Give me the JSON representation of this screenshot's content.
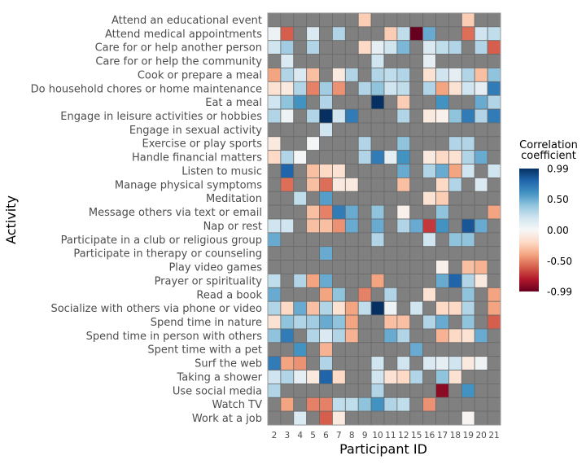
{
  "chart_data": {
    "type": "heatmap",
    "xlabel": "Participant ID",
    "ylabel": "Activity",
    "x_categories": [
      "2",
      "3",
      "4",
      "5",
      "6",
      "7",
      "8",
      "9",
      "10",
      "11",
      "12",
      "15",
      "16",
      "17",
      "18",
      "19",
      "20",
      "21"
    ],
    "y_categories": [
      "Attend an educational event",
      "Attend medical appointments",
      "Care for or help another person",
      "Care for or help the community",
      "Cook or prepare a meal",
      "Do household chores or home maintenance",
      "Eat a meal",
      "Engage in leisure activities or hobbies",
      "Engage in sexual activity",
      "Exercise or play sports",
      "Handle financial matters",
      "Listen to music",
      "Manage physical symptoms",
      "Meditation",
      "Message others via text or email",
      "Nap or rest",
      "Participate in a club or religious group",
      "Participate in therapy or counseling",
      "Play video games",
      "Prayer or spirituality",
      "Read a book",
      "Socialize with others via phone or video",
      "Spend time in nature",
      "Spend time in person with others",
      "Spent time with a pet",
      "Surf the web",
      "Taking a shower",
      "Use social media",
      "Watch TV",
      "Work at a job"
    ],
    "values": [
      [
        null,
        null,
        null,
        null,
        null,
        null,
        null,
        -0.25,
        null,
        null,
        null,
        null,
        null,
        null,
        null,
        -0.25,
        null,
        null
      ],
      [
        0.05,
        -0.6,
        null,
        0.15,
        null,
        0.3,
        null,
        null,
        null,
        -0.25,
        0.25,
        -0.99,
        0.5,
        null,
        null,
        -0.55,
        0.2,
        0.25
      ],
      [
        0.2,
        0.35,
        null,
        0.3,
        null,
        null,
        null,
        -0.2,
        0.1,
        0.2,
        0.45,
        null,
        0.15,
        0.25,
        0.3,
        null,
        0.3,
        -0.6
      ],
      [
        null,
        0.15,
        null,
        null,
        null,
        null,
        null,
        null,
        0.2,
        null,
        null,
        null,
        0.1,
        null,
        null,
        null,
        null,
        null
      ],
      [
        -0.4,
        0.3,
        0.15,
        -0.3,
        null,
        -0.1,
        0.3,
        null,
        0.3,
        0.25,
        0.3,
        null,
        -0.15,
        0.2,
        0.1,
        0.3,
        -0.3,
        0.4
      ],
      [
        -0.15,
        -0.1,
        0.3,
        -0.5,
        0.35,
        -0.45,
        null,
        0.3,
        0.4,
        0.2,
        0.25,
        null,
        0.3,
        -0.4,
        -0.15,
        0.2,
        0.1,
        0.7
      ],
      [
        0.2,
        0.4,
        0.6,
        null,
        0.3,
        null,
        null,
        null,
        0.99,
        null,
        -0.25,
        null,
        null,
        0.6,
        null,
        null,
        0.5,
        0.3
      ],
      [
        0.3,
        0.05,
        null,
        0.3,
        0.99,
        0.2,
        0.7,
        null,
        null,
        null,
        0.3,
        null,
        -0.1,
        -0.05,
        0.4,
        0.7,
        0.3,
        0.7
      ],
      [
        null,
        null,
        null,
        null,
        0.2,
        null,
        null,
        null,
        null,
        null,
        null,
        null,
        null,
        null,
        null,
        null,
        null,
        null
      ],
      [
        -0.1,
        null,
        null,
        0.02,
        null,
        null,
        null,
        0.3,
        null,
        null,
        0.4,
        null,
        null,
        null,
        0.3,
        0.3,
        null,
        null
      ],
      [
        -0.2,
        0.3,
        0.02,
        null,
        null,
        null,
        null,
        0.3,
        0.7,
        0.1,
        0.6,
        null,
        -0.1,
        -0.2,
        -0.15,
        0.3,
        0.5,
        null
      ],
      [
        null,
        0.8,
        null,
        -0.3,
        -0.2,
        -0.15,
        null,
        null,
        null,
        null,
        0.5,
        null,
        0.3,
        0.5,
        -0.4,
        0.2,
        null,
        0.2
      ],
      [
        null,
        -0.55,
        null,
        -0.3,
        -0.55,
        -0.1,
        -0.1,
        null,
        null,
        null,
        -0.3,
        null,
        null,
        -0.2,
        0.3,
        null,
        0.15,
        null
      ],
      [
        null,
        null,
        0.25,
        null,
        0.55,
        null,
        null,
        null,
        null,
        null,
        null,
        null,
        -0.15,
        -0.25,
        null,
        null,
        null,
        null
      ],
      [
        null,
        null,
        null,
        -0.3,
        -0.5,
        0.7,
        0.5,
        null,
        0.4,
        null,
        -0.05,
        null,
        null,
        0.4,
        null,
        null,
        null,
        -0.4
      ],
      [
        0.2,
        0.2,
        null,
        -0.3,
        -0.3,
        -0.45,
        0.5,
        null,
        0.5,
        null,
        0.3,
        0.5,
        -0.7,
        0.6,
        null,
        0.85,
        0.5,
        null
      ],
      [
        0.5,
        null,
        null,
        null,
        null,
        null,
        null,
        null,
        0.3,
        null,
        null,
        null,
        0.2,
        null,
        0.4,
        0.4,
        null,
        null
      ],
      [
        null,
        null,
        null,
        null,
        0.5,
        null,
        null,
        null,
        null,
        null,
        null,
        null,
        null,
        null,
        null,
        null,
        null,
        null
      ],
      [
        null,
        null,
        null,
        null,
        null,
        null,
        null,
        null,
        null,
        null,
        null,
        null,
        null,
        -0.05,
        null,
        -0.3,
        -0.35,
        null
      ],
      [
        0.25,
        null,
        0.3,
        -0.4,
        0.5,
        null,
        null,
        null,
        -0.4,
        null,
        null,
        null,
        null,
        0.5,
        0.8,
        0.3,
        -0.1,
        null
      ],
      [
        0.5,
        null,
        null,
        null,
        -0.4,
        0.4,
        null,
        -0.5,
        null,
        0.3,
        null,
        null,
        -0.15,
        null,
        null,
        0.4,
        null,
        -0.4
      ],
      [
        0.3,
        -0.2,
        0.5,
        -0.3,
        0.3,
        -0.15,
        -0.4,
        0.25,
        0.99,
        0.05,
        null,
        0.2,
        null,
        -0.2,
        -0.2,
        0.3,
        null,
        -0.4
      ],
      [
        -0.15,
        0.4,
        0.3,
        0.35,
        0.5,
        0.4,
        -0.4,
        null,
        null,
        -0.3,
        -0.3,
        null,
        0.3,
        0.5,
        null,
        0.4,
        null,
        -0.6
      ],
      [
        0.4,
        0.7,
        null,
        0.3,
        0.15,
        0.3,
        -0.35,
        null,
        null,
        0.5,
        0.3,
        null,
        null,
        -0.35,
        -0.2,
        -0.15,
        0.5,
        null
      ],
      [
        null,
        null,
        0.6,
        null,
        -0.35,
        null,
        null,
        null,
        null,
        null,
        null,
        0.5,
        null,
        null,
        null,
        null,
        null,
        null
      ],
      [
        0.7,
        -0.4,
        -0.45,
        null,
        0.3,
        null,
        null,
        null,
        0.2,
        null,
        0.2,
        null,
        0.15,
        0.1,
        0.2,
        -0.1,
        0.05,
        null
      ],
      [
        0.2,
        0.3,
        0.1,
        -0.1,
        0.8,
        -0.2,
        null,
        null,
        0.2,
        -0.15,
        -0.2,
        0.3,
        null,
        0.4,
        -0.15,
        null,
        null,
        null
      ],
      [
        0.3,
        null,
        null,
        null,
        null,
        null,
        null,
        null,
        0.3,
        null,
        null,
        null,
        null,
        -0.9,
        null,
        0.6,
        null,
        null
      ],
      [
        null,
        -0.4,
        null,
        -0.5,
        -0.5,
        0.25,
        0.25,
        0.4,
        0.6,
        0.3,
        0.25,
        null,
        -0.45,
        null,
        null,
        null,
        null,
        null
      ],
      [
        null,
        null,
        0.15,
        null,
        -0.6,
        -0.1,
        null,
        null,
        null,
        null,
        null,
        null,
        null,
        null,
        null,
        -0.02,
        null,
        null
      ]
    ],
    "legend": {
      "title_line1": "Correlation",
      "title_line2": "coefficient",
      "ticks": [
        "0.99",
        "0.50",
        "0.00",
        "-0.50",
        "-0.99"
      ],
      "tick_values": [
        0.99,
        0.5,
        0.0,
        -0.5,
        -0.99
      ],
      "range": [
        -0.99,
        0.99
      ],
      "placement": "right"
    },
    "colors": {
      "missing": "#808080",
      "grid": "#6a6a6a",
      "scale": [
        "#67001f",
        "#b2182b",
        "#d6604d",
        "#f4a582",
        "#fddbc7",
        "#f7f7f7",
        "#d1e5f0",
        "#92c5de",
        "#4393c3",
        "#2166ac",
        "#053061"
      ]
    }
  }
}
